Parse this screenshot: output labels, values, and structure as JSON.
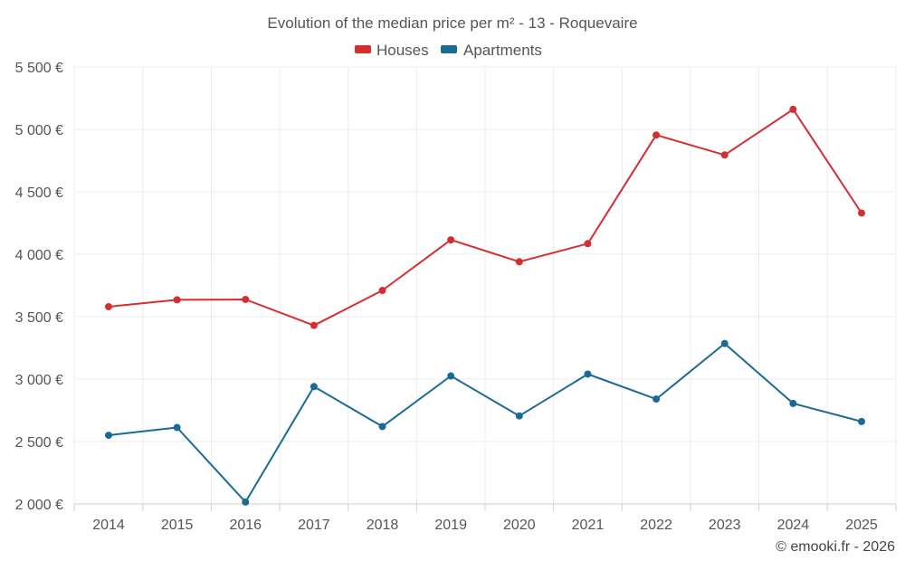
{
  "chart_data": {
    "type": "line",
    "title": "Evolution of the median price per m² - 13 - Roquevaire",
    "categories": [
      "2014",
      "2015",
      "2016",
      "2017",
      "2018",
      "2019",
      "2020",
      "2021",
      "2022",
      "2023",
      "2024",
      "2025"
    ],
    "series": [
      {
        "name": "Houses",
        "color": "#d32f2f",
        "values": [
          3580,
          3635,
          3638,
          3430,
          3710,
          4115,
          3940,
          4085,
          4955,
          4795,
          5160,
          4330
        ]
      },
      {
        "name": "Apartments",
        "color": "#1a6a96",
        "values": [
          2550,
          2612,
          2015,
          2940,
          2620,
          3025,
          2705,
          3040,
          2840,
          3285,
          2805,
          2660
        ]
      }
    ],
    "ylim": [
      2000,
      5500
    ],
    "yticks": [
      2000,
      2500,
      3000,
      3500,
      4000,
      4500,
      5000,
      5500
    ],
    "ytick_labels": [
      "2 000 €",
      "2 500 €",
      "3 000 €",
      "3 500 €",
      "4 000 €",
      "4 500 €",
      "5 000 €",
      "5 500 €"
    ],
    "xlabel": "",
    "ylabel": "",
    "grid": true,
    "legend_position": "top-center"
  },
  "credit": "© emooki.fr - 2026"
}
